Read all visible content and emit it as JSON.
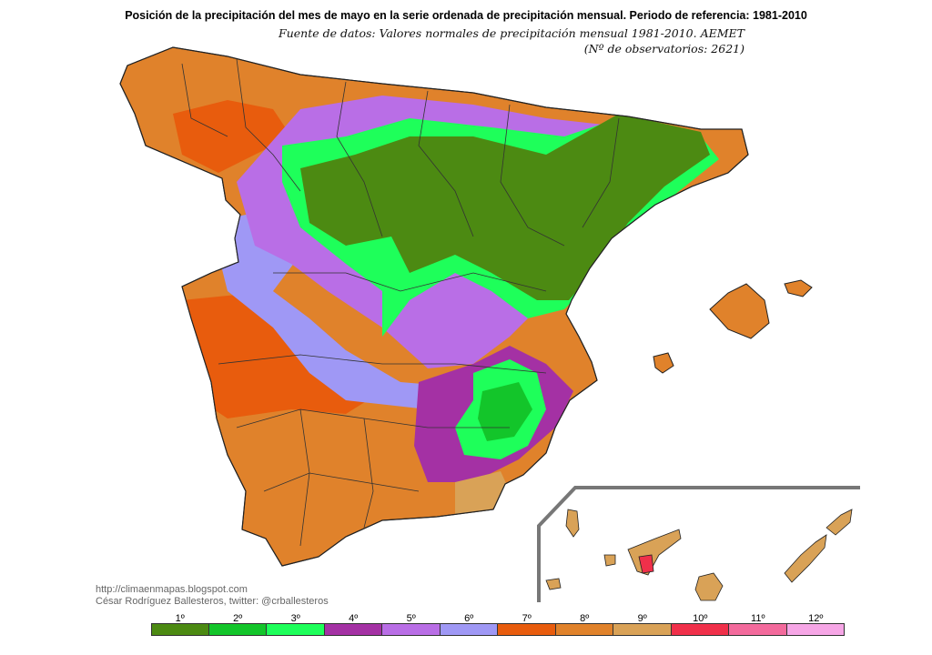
{
  "header": {
    "title": "Posición de la precipitación del mes de mayo en la serie ordenada de precipitación mensual. Periodo de referencia: 1981-2010",
    "source_line1": "Fuente de datos: Valores normales de precipitación mensual 1981-2010. AEMET",
    "source_line2": "(Nº de observatorios: 2621)"
  },
  "credits": {
    "url": "http://climaenmapas.blogspot.com",
    "author": "César Rodríguez Ballesteros, twitter: @crballesteros"
  },
  "legend": [
    {
      "label": "1º",
      "color": "#4c8a12"
    },
    {
      "label": "2º",
      "color": "#13c52a"
    },
    {
      "label": "3º",
      "color": "#1eff5a"
    },
    {
      "label": "4º",
      "color": "#a431a4"
    },
    {
      "label": "5º",
      "color": "#b96ee6"
    },
    {
      "label": "6º",
      "color": "#9f98f5"
    },
    {
      "label": "7º",
      "color": "#e85c0d"
    },
    {
      "label": "8º",
      "color": "#e0822b"
    },
    {
      "label": "9º",
      "color": "#d9a257"
    },
    {
      "label": "10º",
      "color": "#f0304a"
    },
    {
      "label": "11º",
      "color": "#f36a9c"
    },
    {
      "label": "12º",
      "color": "#f6a6e6"
    }
  ]
}
